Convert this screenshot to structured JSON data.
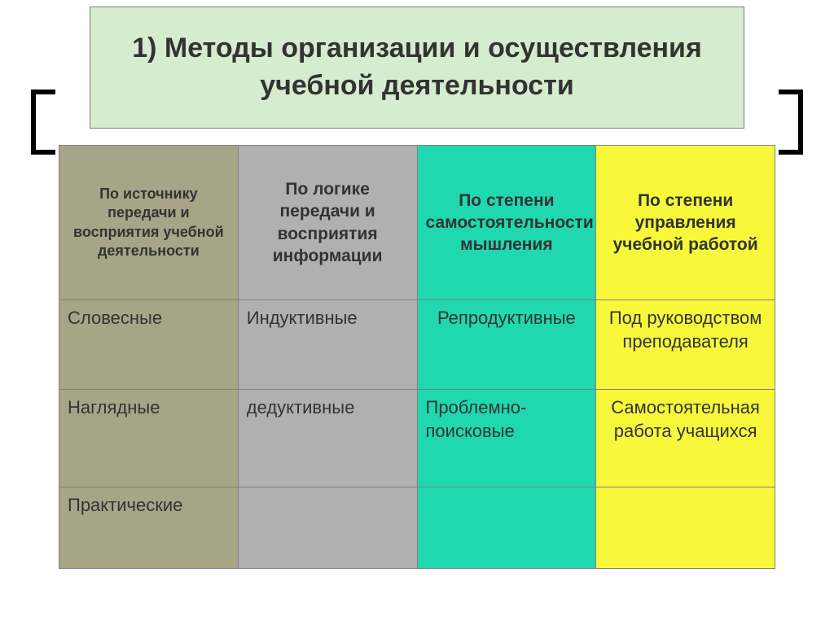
{
  "title": "1) Методы организации и осуществления учебной деятельности",
  "title_bg": "#d6ecce",
  "columns": [
    {
      "header": "По источнику передачи и восприятия учебной деятельности",
      "bg": "#a8a487",
      "header_fontsize": 18
    },
    {
      "header": "По логике передачи и восприятия информации",
      "bg": "#b0b0b0",
      "header_fontsize": 21
    },
    {
      "header": "По степени самостоятельности мышления",
      "bg": "#1fd8b0",
      "header_fontsize": 21
    },
    {
      "header": "По степени управления учебной работой",
      "bg": "#f8f83a",
      "header_fontsize": 21
    }
  ],
  "rows": [
    [
      {
        "text": "Словесные",
        "align": "left"
      },
      {
        "text": "Индуктивные",
        "align": "left"
      },
      {
        "text": "Репродуктивные",
        "align": "center"
      },
      {
        "text": "Под руководством преподавателя",
        "align": "center"
      }
    ],
    [
      {
        "text": "Наглядные",
        "align": "left"
      },
      {
        "text": "дедуктивные",
        "align": "left"
      },
      {
        "text": "Проблемно-поисковые",
        "align": "left"
      },
      {
        "text": "Самостоятельная работа учащихся",
        "align": "center"
      }
    ],
    [
      {
        "text": "Практические",
        "align": "left"
      },
      {
        "text": "",
        "align": "left"
      },
      {
        "text": "",
        "align": "left"
      },
      {
        "text": "",
        "align": "left"
      }
    ]
  ],
  "border_color": "#808080",
  "text_color": "#333333"
}
